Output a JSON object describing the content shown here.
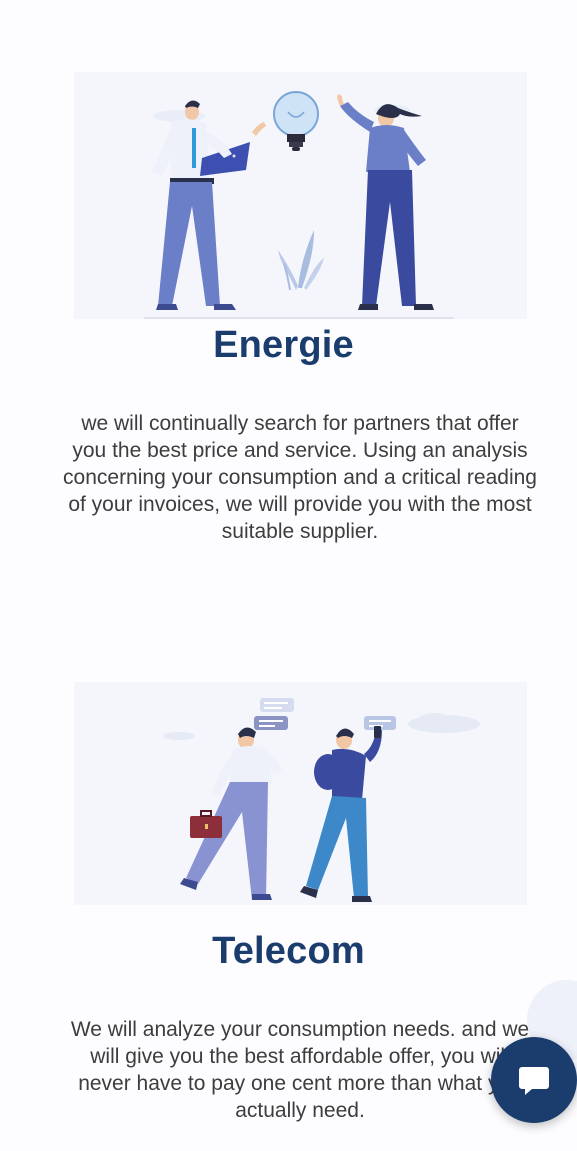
{
  "sections": {
    "energie": {
      "title": "Energie",
      "description": "we will continually search for partners that offer you the best price and service. Using an analysis concerning your consumption and a critical reading of your invoices, we will provide you with the most suitable supplier."
    },
    "telecom": {
      "title": "Telecom",
      "description": "We will analyze your consumption needs. and we will give you the best affordable offer, you will never have to pay one cent more than what you actually need."
    }
  },
  "chat": {
    "icon": "chat-bubble-icon"
  },
  "colors": {
    "title": "#1b3d6d",
    "text": "#3d3d3d",
    "accent": "#5c6bc0",
    "chat_button": "#1b3d6d"
  }
}
